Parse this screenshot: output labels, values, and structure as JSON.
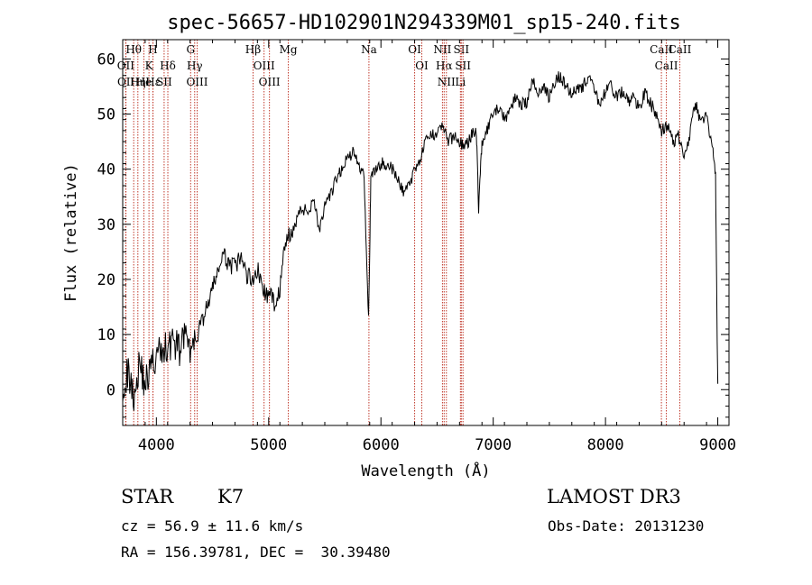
{
  "chart_data": {
    "type": "line",
    "title": "spec-56657-HD102901N294339M01_sp15-240.fits",
    "xlabel": "Wavelength (Å)",
    "ylabel": "Flux (relative)",
    "xlim": [
      3700,
      9100
    ],
    "ylim": [
      -6.5,
      63.5
    ],
    "xticks": [
      4000,
      5000,
      6000,
      7000,
      8000,
      9000
    ],
    "yticks": [
      0,
      10,
      20,
      30,
      40,
      50,
      60
    ],
    "grid": false,
    "series": [
      {
        "line_color": "#000000",
        "x": [
          3700,
          3750,
          3800,
          3850,
          3900,
          3950,
          4000,
          4050,
          4100,
          4150,
          4200,
          4250,
          4300,
          4340,
          4400,
          4450,
          4500,
          4550,
          4600,
          4650,
          4700,
          4750,
          4800,
          4850,
          4900,
          4950,
          5000,
          5050,
          5100,
          5150,
          5200,
          5250,
          5300,
          5350,
          5400,
          5450,
          5500,
          5550,
          5600,
          5650,
          5700,
          5750,
          5800,
          5850,
          5890,
          5910,
          5950,
          6000,
          6050,
          6100,
          6150,
          6200,
          6250,
          6300,
          6350,
          6400,
          6450,
          6500,
          6550,
          6600,
          6650,
          6700,
          6750,
          6800,
          6850,
          6870,
          6900,
          6950,
          7000,
          7050,
          7100,
          7150,
          7200,
          7250,
          7300,
          7350,
          7400,
          7450,
          7500,
          7550,
          7600,
          7650,
          7700,
          7750,
          7800,
          7850,
          7900,
          7950,
          8000,
          8050,
          8100,
          8150,
          8200,
          8250,
          8300,
          8350,
          8400,
          8450,
          8500,
          8550,
          8600,
          8650,
          8700,
          8750,
          8800,
          8850,
          8900,
          8950,
          8980,
          9000
        ],
        "y": [
          1,
          3,
          -1,
          5,
          1,
          4,
          6,
          7,
          8,
          9,
          7,
          10,
          6,
          9,
          12,
          15,
          18,
          22,
          24,
          23,
          22,
          24,
          21,
          20,
          22,
          18,
          17,
          16,
          18,
          27,
          28,
          31,
          33,
          32,
          35,
          29,
          33,
          35,
          38,
          40,
          42,
          43,
          41,
          39,
          13,
          38,
          40,
          41,
          41,
          40,
          38,
          36,
          37,
          40,
          42,
          45,
          46,
          47,
          48,
          45,
          46,
          45,
          44,
          46,
          47,
          33,
          45,
          47,
          50,
          51,
          49,
          51,
          53,
          52,
          52,
          56,
          54,
          55,
          53,
          56,
          57,
          55,
          54,
          55,
          55,
          57,
          54,
          52,
          54,
          55,
          53,
          54,
          52,
          53,
          51,
          54,
          52,
          50,
          47,
          48,
          45,
          46,
          43,
          46,
          52,
          48,
          50,
          44,
          39,
          0
        ]
      }
    ],
    "spectral_lines": [
      {
        "label": "Hθ",
        "x": 3798
      },
      {
        "label": "OII",
        "x": 3727
      },
      {
        "label": "OII",
        "x": 3729
      },
      {
        "label": "K",
        "x": 3934
      },
      {
        "label": "H",
        "x": 3969
      },
      {
        "label": "Hε",
        "x": 3970
      },
      {
        "label": "Hδ",
        "x": 4102
      },
      {
        "label": "SII",
        "x": 4069
      },
      {
        "label": "He",
        "x": 3889
      },
      {
        "label": "Hη",
        "x": 3835
      },
      {
        "label": "G",
        "x": 4305
      },
      {
        "label": "Hγ",
        "x": 4341
      },
      {
        "label": "OIII",
        "x": 4363
      },
      {
        "label": "Hβ",
        "x": 4861
      },
      {
        "label": "OIII",
        "x": 4959
      },
      {
        "label": "OIII",
        "x": 5007
      },
      {
        "label": "Mg",
        "x": 5175
      },
      {
        "label": "Na",
        "x": 5893
      },
      {
        "label": "OI",
        "x": 6300
      },
      {
        "label": "OI",
        "x": 6364
      },
      {
        "label": "NII",
        "x": 6548
      },
      {
        "label": "Hα",
        "x": 6563
      },
      {
        "label": "NII",
        "x": 6583
      },
      {
        "label": "SII",
        "x": 6716
      },
      {
        "label": "SII",
        "x": 6731
      },
      {
        "label": "Li",
        "x": 6708
      },
      {
        "label": "CaII",
        "x": 8498
      },
      {
        "label": "CaII",
        "x": 8542
      },
      {
        "label": "CaII",
        "x": 8662
      }
    ]
  },
  "info": {
    "class": "STAR",
    "subclass": "K7",
    "survey": "LAMOST DR3",
    "cz": "cz = 56.9 ± 11.6 km/s",
    "obs_date": "Obs-Date: 20131230",
    "coords": "RA = 156.39781, DEC =  30.39480"
  }
}
